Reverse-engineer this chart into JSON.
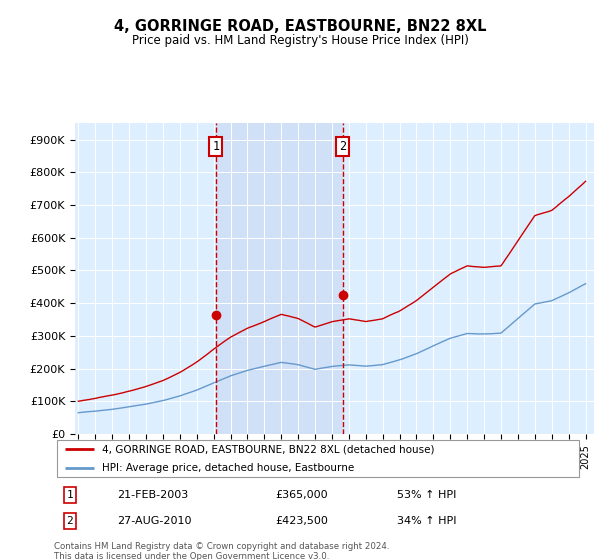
{
  "title": "4, GORRINGE ROAD, EASTBOURNE, BN22 8XL",
  "subtitle": "Price paid vs. HM Land Registry's House Price Index (HPI)",
  "ylabel_ticks": [
    "£0",
    "£100K",
    "£200K",
    "£300K",
    "£400K",
    "£500K",
    "£600K",
    "£700K",
    "£800K",
    "£900K"
  ],
  "ytick_values": [
    0,
    100000,
    200000,
    300000,
    400000,
    500000,
    600000,
    700000,
    800000,
    900000
  ],
  "ylim": [
    0,
    950000
  ],
  "sale1": {
    "date_num": 2003.13,
    "price": 365000,
    "label": "1",
    "date_str": "21-FEB-2003",
    "pct": "53% ↑ HPI"
  },
  "sale2": {
    "date_num": 2010.65,
    "price": 423500,
    "label": "2",
    "date_str": "27-AUG-2010",
    "pct": "34% ↑ HPI"
  },
  "legend_line1": "4, GORRINGE ROAD, EASTBOURNE, BN22 8XL (detached house)",
  "legend_line2": "HPI: Average price, detached house, Eastbourne",
  "footer": "Contains HM Land Registry data © Crown copyright and database right 2024.\nThis data is licensed under the Open Government Licence v3.0.",
  "red_color": "#cc0000",
  "blue_color": "#6699cc",
  "background_color": "#ddeeff",
  "shade_color": "#ccddf5",
  "xlim_left": 1994.8,
  "xlim_right": 2025.5,
  "hpi_base": [
    65000,
    70000,
    76000,
    84000,
    92000,
    103000,
    117000,
    135000,
    157000,
    178000,
    195000,
    207000,
    219000,
    212000,
    198000,
    207000,
    211000,
    207000,
    212000,
    226000,
    245000,
    269000,
    292000,
    307000,
    305000,
    308000,
    353000,
    398000,
    408000,
    432000,
    460000
  ],
  "hpi_years": [
    1995,
    1996,
    1997,
    1998,
    1999,
    2000,
    2001,
    2002,
    2003,
    2004,
    2005,
    2006,
    2007,
    2008,
    2009,
    2010,
    2011,
    2012,
    2013,
    2014,
    2015,
    2016,
    2017,
    2018,
    2019,
    2020,
    2021,
    2022,
    2023,
    2024,
    2025
  ],
  "red_base": [
    100000,
    108000,
    118000,
    130000,
    145000,
    163000,
    188000,
    220000,
    260000,
    296000,
    323000,
    343000,
    365000,
    352000,
    325000,
    340000,
    348000,
    340000,
    348000,
    372000,
    404000,
    444000,
    484000,
    508000,
    504000,
    508000,
    584000,
    660000,
    676000,
    718000,
    765000
  ],
  "noise_seed": 42
}
